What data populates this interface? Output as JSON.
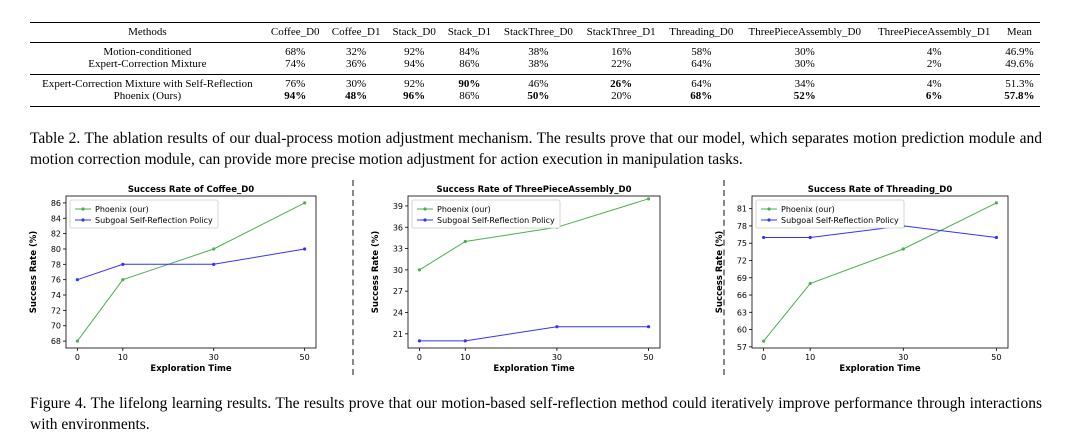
{
  "table": {
    "headers": [
      "Methods",
      "Coffee_D0",
      "Coffee_D1",
      "Stack_D0",
      "Stack_D1",
      "StackThree_D0",
      "StackThree_D1",
      "Threading_D0",
      "ThreePieceAssembly_D0",
      "ThreePieceAssembly_D1",
      "Mean"
    ],
    "group1": [
      {
        "method": "Motion-conditioned",
        "values": [
          "68%",
          "32%",
          "92%",
          "84%",
          "38%",
          "16%",
          "58%",
          "30%",
          "4%",
          "46.9%"
        ],
        "bold": []
      },
      {
        "method": "Expert-Correction Mixture",
        "values": [
          "74%",
          "36%",
          "94%",
          "86%",
          "38%",
          "22%",
          "64%",
          "30%",
          "2%",
          "49.6%"
        ],
        "bold": []
      }
    ],
    "group2": [
      {
        "method": "Expert-Correction Mixture with Self-Reflection",
        "values": [
          "76%",
          "30%",
          "92%",
          "90%",
          "46%",
          "26%",
          "64%",
          "34%",
          "4%",
          "51.3%"
        ],
        "bold": [
          3,
          5
        ]
      },
      {
        "method": "Phoenix (Ours)",
        "values": [
          "94%",
          "48%",
          "96%",
          "86%",
          "50%",
          "20%",
          "68%",
          "52%",
          "6%",
          "57.8%"
        ],
        "bold": [
          0,
          1,
          2,
          4,
          6,
          7,
          8,
          9
        ]
      }
    ]
  },
  "captions": {
    "table_caption": "Table 2. The ablation results of our dual-process motion adjustment mechanism. The results prove that our model, which separates motion prediction module and motion correction module, can provide more precise motion adjustment for action execution in manipulation tasks.",
    "figure_caption": "Figure 4. The lifelong learning results. The results prove that our motion-based self-reflection method could iteratively improve performance through interactions with environments."
  },
  "chart_data": [
    {
      "type": "line",
      "title": "Success Rate of Coffee_D0",
      "xlabel": "Exploration Time",
      "ylabel": "Success Rate (%)",
      "x": [
        0,
        10,
        30,
        50
      ],
      "xlim": [
        -2.5,
        52.5
      ],
      "ylim": [
        67.1,
        86.9
      ],
      "yticks": [
        68,
        70,
        72,
        74,
        76,
        78,
        80,
        82,
        84,
        86
      ],
      "legend_position": "top-left",
      "series": [
        {
          "name": "Phoenix (our)",
          "color": "#4caf50",
          "values": [
            68,
            76,
            80,
            86
          ]
        },
        {
          "name": "Subgoal Self-Reflection Policy",
          "color": "#3333ff",
          "values": [
            76,
            78,
            78,
            80
          ]
        }
      ]
    },
    {
      "type": "line",
      "title": "Success Rate of ThreePieceAssembly_D0",
      "xlabel": "Exploration Time",
      "ylabel": "Success Rate (%)",
      "x": [
        0,
        10,
        30,
        50
      ],
      "xlim": [
        -2.5,
        52.5
      ],
      "ylim": [
        19.0,
        40.4
      ],
      "yticks": [
        21,
        24,
        27,
        30,
        33,
        36,
        39
      ],
      "legend_position": "top-left",
      "series": [
        {
          "name": "Phoenix (our)",
          "color": "#4caf50",
          "values": [
            30,
            34,
            36,
            40
          ]
        },
        {
          "name": "Subgoal Self-Reflection Policy",
          "color": "#3333ff",
          "values": [
            20,
            20,
            22,
            22
          ]
        }
      ]
    },
    {
      "type": "line",
      "title": "Success Rate of Threading_D0",
      "xlabel": "Exploration Time",
      "ylabel": "Success Rate (%)",
      "x": [
        0,
        10,
        30,
        50
      ],
      "xlim": [
        -2.5,
        52.5
      ],
      "ylim": [
        56.8,
        83.2
      ],
      "yticks": [
        57,
        60,
        63,
        66,
        69,
        72,
        75,
        78,
        81
      ],
      "legend_position": "top-left",
      "series": [
        {
          "name": "Phoenix (our)",
          "color": "#4caf50",
          "values": [
            58,
            68,
            74,
            82
          ]
        },
        {
          "name": "Subgoal Self-Reflection Policy",
          "color": "#3333ff",
          "values": [
            76,
            76,
            78,
            76
          ]
        }
      ]
    }
  ]
}
